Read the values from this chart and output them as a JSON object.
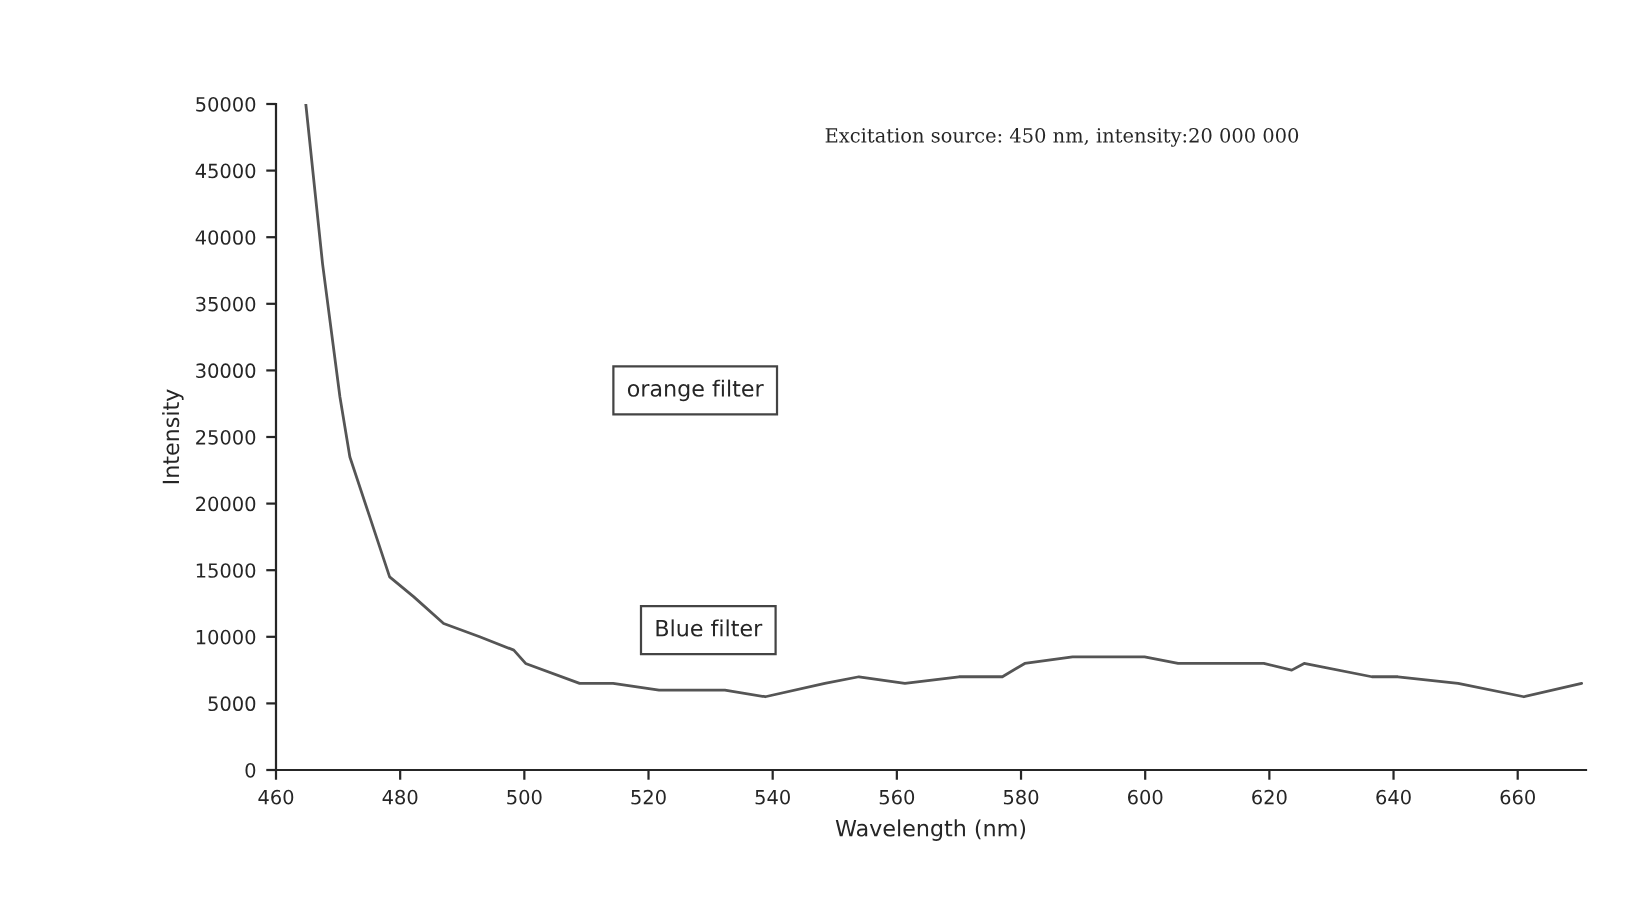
{
  "chart_data": {
    "type": "line",
    "xlabel": "Wavelength (nm)",
    "ylabel": "Intensity",
    "annotations": [
      "Excitation source: 450 nm, intensity:20 000 000",
      "orange filter",
      "Blue filter"
    ],
    "series": [
      {
        "color": "#555555",
        "x": [
          464.8,
          467.5,
          470.3,
          471.9,
          475.1,
          478.3,
          482.2,
          487,
          492.8,
          498.3,
          500.2,
          508.9,
          514.3,
          521.7,
          532.3,
          538.8,
          548.4,
          553.9,
          561.3,
          570,
          577,
          580.6,
          588.3,
          594.7,
          599.9,
          605.3,
          612.7,
          619.1,
          623.6,
          625.6,
          636.5,
          640.7,
          650.4,
          661,
          670.3
        ],
        "values": [
          50000,
          38000,
          28000,
          23500,
          19000,
          14500,
          13000,
          11000,
          10000,
          9000,
          8000,
          6500,
          6500,
          6000,
          6000,
          5500,
          6500,
          7000,
          6500,
          7000,
          7000,
          8000,
          8500,
          8500,
          8500,
          8000,
          8000,
          8000,
          7500,
          8000,
          7000,
          7000,
          6500,
          5500,
          6500
        ]
      }
    ],
    "xlim": [
      460,
      671
    ],
    "xticks": [
      460,
      480,
      500,
      520,
      540,
      560,
      580,
      600,
      620,
      640,
      660
    ],
    "ylim": [
      0,
      50000
    ],
    "yticks": [
      0,
      5000,
      10000,
      15000,
      20000,
      25000,
      30000,
      35000,
      40000,
      45000,
      50000
    ],
    "grid": false
  }
}
